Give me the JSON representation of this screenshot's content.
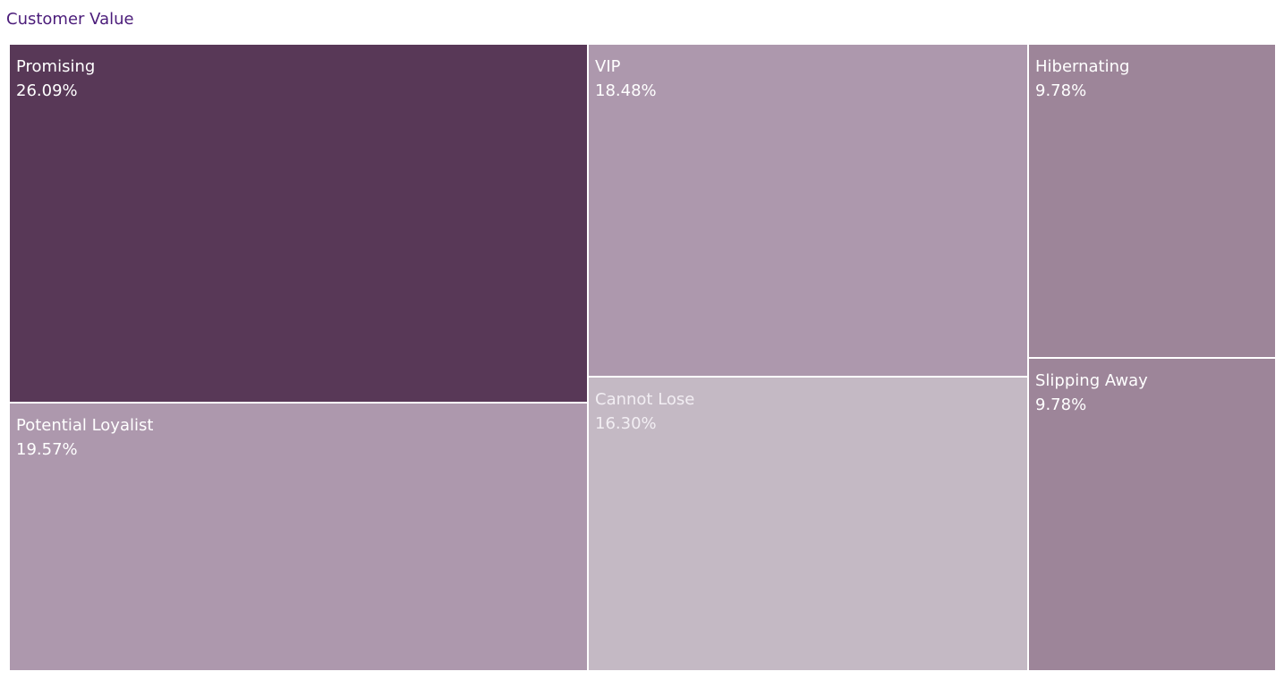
{
  "title": "Customer Value",
  "chart_data": {
    "type": "treemap",
    "title": "Customer Value",
    "value_format": "percent",
    "items": [
      {
        "label": "Promising",
        "value": 26.09,
        "display": "26.09%",
        "color": "#583857"
      },
      {
        "label": "Potential Loyalist",
        "value": 19.57,
        "display": "19.57%",
        "color": "#ad98ad"
      },
      {
        "label": "VIP",
        "value": 18.48,
        "display": "18.48%",
        "color": "#ad98ad"
      },
      {
        "label": "Cannot Lose",
        "value": 16.3,
        "display": "16.30%",
        "color": "#c4b9c4"
      },
      {
        "label": "Hibernating",
        "value": 9.78,
        "display": "9.78%",
        "color": "#9d8599"
      },
      {
        "label": "Slipping Away",
        "value": 9.78,
        "display": "9.78%",
        "color": "#9d8599"
      }
    ]
  }
}
